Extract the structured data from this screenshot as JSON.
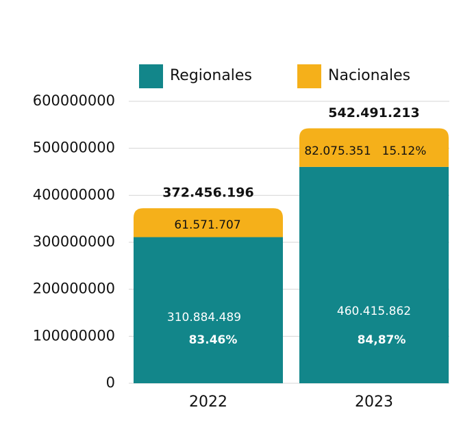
{
  "chart_data": {
    "type": "stacked_bar",
    "categories": [
      "2022",
      "2023"
    ],
    "series": [
      {
        "name": "Regionales",
        "color": "#12868a",
        "values": [
          310884489,
          460415862
        ],
        "value_labels": [
          "310.884.489",
          "460.415.862"
        ]
      },
      {
        "name": "Nacionales",
        "color": "#f5b01a",
        "values": [
          61571707,
          82075351
        ],
        "value_labels": [
          "61.571.707",
          "82.075.351"
        ]
      }
    ],
    "total_labels": [
      "372.456.196",
      "542.491.213"
    ],
    "annotations": [
      "83.46%",
      "84,87%",
      "15.12%"
    ],
    "ylim": [
      0,
      600000000
    ],
    "yticks": [
      0,
      100000000,
      200000000,
      300000000,
      400000000,
      500000000,
      600000000
    ],
    "grid": true,
    "legend": "top"
  }
}
